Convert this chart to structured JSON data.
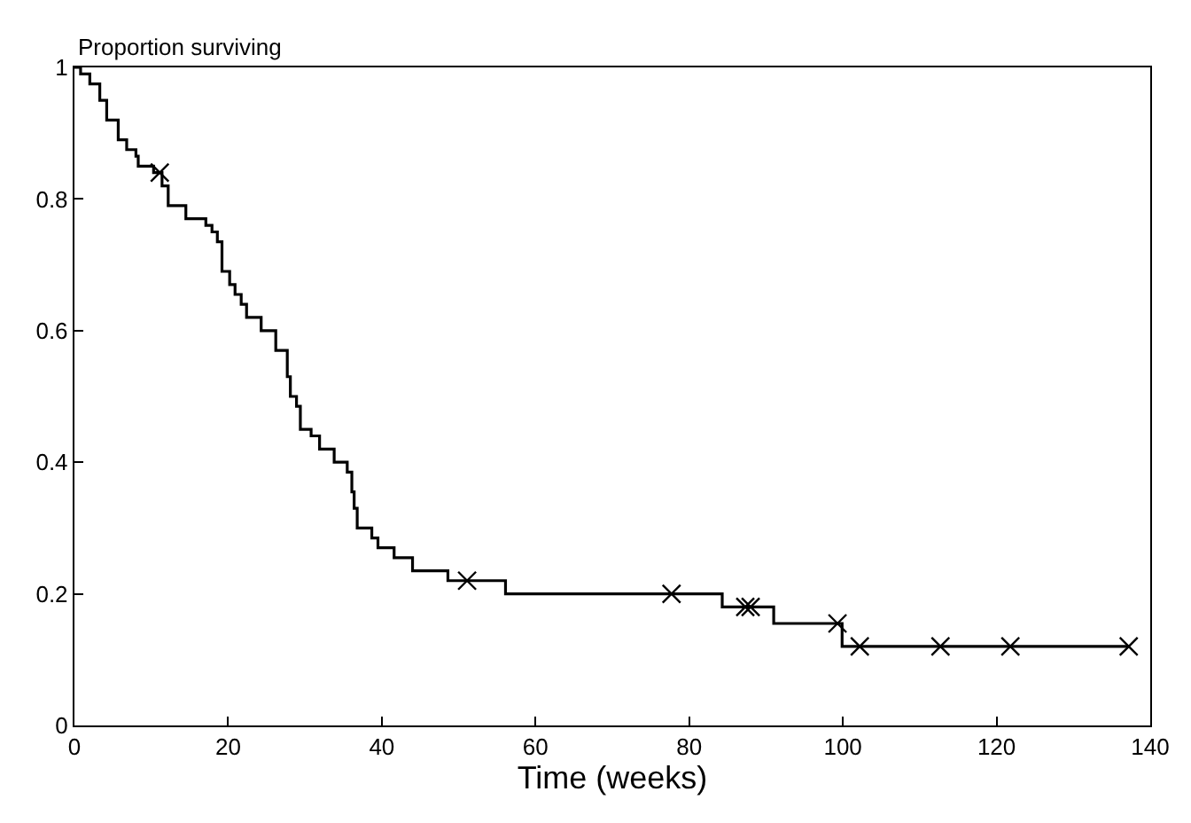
{
  "chart_data": {
    "type": "step",
    "ylabel": "Proportion surviving",
    "xlabel": "Time (weeks)",
    "xlim": [
      0,
      140
    ],
    "ylim": [
      0,
      1
    ],
    "xticks": [
      0,
      20,
      40,
      60,
      80,
      100,
      120,
      140
    ],
    "yticks": [
      0,
      0.2,
      0.4,
      0.6,
      0.8,
      1
    ],
    "series": [
      {
        "color": "#000000",
        "marker": "none",
        "x": [
          0,
          0.8,
          2.0,
          3.3,
          4.2,
          5.7,
          6.8,
          8.0,
          8.3,
          10.3,
          11.4,
          12.2,
          14.5,
          17.1,
          17.9,
          18.6,
          19.2,
          20.2,
          20.9,
          21.7,
          22.4,
          24.3,
          26.2,
          27.7,
          28.1,
          28.9,
          29.4,
          30.8,
          31.9,
          33.8,
          35.5,
          36.1,
          36.4,
          36.8,
          38.7,
          39.5,
          41.6,
          44.0,
          48.6,
          56.1,
          84.3,
          91.0,
          99.9,
          137.2
        ],
        "values": [
          1,
          0.99,
          0.975,
          0.95,
          0.92,
          0.89,
          0.875,
          0.865,
          0.85,
          0.84,
          0.82,
          0.79,
          0.77,
          0.76,
          0.75,
          0.735,
          0.69,
          0.67,
          0.655,
          0.64,
          0.62,
          0.6,
          0.57,
          0.53,
          0.5,
          0.485,
          0.45,
          0.44,
          0.42,
          0.4,
          0.385,
          0.355,
          0.33,
          0.3,
          0.285,
          0.27,
          0.255,
          0.235,
          0.22,
          0.2,
          0.18,
          0.155,
          0.12,
          0.12
        ]
      },
      {
        "type": "scatter",
        "color": "#000000",
        "marker": "cross",
        "x": [
          11.1,
          51.1,
          77.7,
          87.3,
          88.0,
          99.3,
          102.2,
          112.7,
          121.8,
          137.2
        ],
        "values": [
          0.84,
          0.22,
          0.2,
          0.18,
          0.18,
          0.155,
          0.12,
          0.12,
          0.12,
          0.12
        ]
      }
    ]
  }
}
